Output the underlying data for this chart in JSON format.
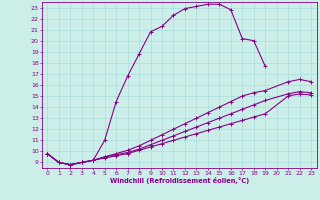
{
  "xlabel": "Windchill (Refroidissement éolien,°C)",
  "bg_color": "#cceee8",
  "grid_color": "#aadddd",
  "line_color": "#880088",
  "xlim": [
    -0.5,
    23.5
  ],
  "ylim": [
    8.5,
    23.5
  ],
  "yticks": [
    9,
    10,
    11,
    12,
    13,
    14,
    15,
    16,
    17,
    18,
    19,
    20,
    21,
    22,
    23
  ],
  "xticks": [
    0,
    1,
    2,
    3,
    4,
    5,
    6,
    7,
    8,
    9,
    10,
    11,
    12,
    13,
    14,
    15,
    16,
    17,
    18,
    19,
    20,
    21,
    22,
    23
  ],
  "series1_x": [
    0,
    1,
    2,
    3,
    4,
    5,
    6,
    7,
    8,
    9,
    10,
    11,
    12,
    13,
    14,
    15,
    16,
    17,
    18,
    19
  ],
  "series1_y": [
    9.8,
    9.0,
    8.8,
    9.0,
    9.2,
    11.0,
    14.5,
    16.8,
    18.8,
    20.8,
    21.3,
    22.3,
    22.9,
    23.1,
    23.3,
    23.3,
    22.8,
    20.2,
    20.0,
    17.7
  ],
  "series2_x": [
    0,
    1,
    2,
    3,
    4,
    5,
    6,
    7,
    8,
    9,
    10,
    11,
    12,
    13,
    14,
    15,
    16,
    17,
    18,
    19,
    21,
    22,
    23
  ],
  "series2_y": [
    9.8,
    9.0,
    8.8,
    9.0,
    9.2,
    9.5,
    9.8,
    10.1,
    10.5,
    11.0,
    11.5,
    12.0,
    12.5,
    13.0,
    13.5,
    14.0,
    14.5,
    15.0,
    15.3,
    15.5,
    16.3,
    16.5,
    16.3
  ],
  "series3_x": [
    0,
    1,
    2,
    3,
    4,
    5,
    6,
    7,
    8,
    9,
    10,
    11,
    12,
    13,
    14,
    15,
    16,
    17,
    18,
    19,
    21,
    22,
    23
  ],
  "series3_y": [
    9.8,
    9.0,
    8.8,
    9.0,
    9.2,
    9.5,
    9.7,
    9.9,
    10.2,
    10.6,
    11.0,
    11.4,
    11.8,
    12.2,
    12.6,
    13.0,
    13.4,
    13.8,
    14.2,
    14.6,
    15.2,
    15.4,
    15.3
  ],
  "series4_x": [
    0,
    1,
    2,
    3,
    4,
    5,
    6,
    7,
    8,
    9,
    10,
    11,
    12,
    13,
    14,
    15,
    16,
    17,
    18,
    19,
    21,
    22,
    23
  ],
  "series4_y": [
    9.8,
    9.0,
    8.8,
    9.0,
    9.2,
    9.4,
    9.6,
    9.8,
    10.1,
    10.4,
    10.7,
    11.0,
    11.3,
    11.6,
    11.9,
    12.2,
    12.5,
    12.8,
    13.1,
    13.4,
    15.0,
    15.2,
    15.1
  ]
}
